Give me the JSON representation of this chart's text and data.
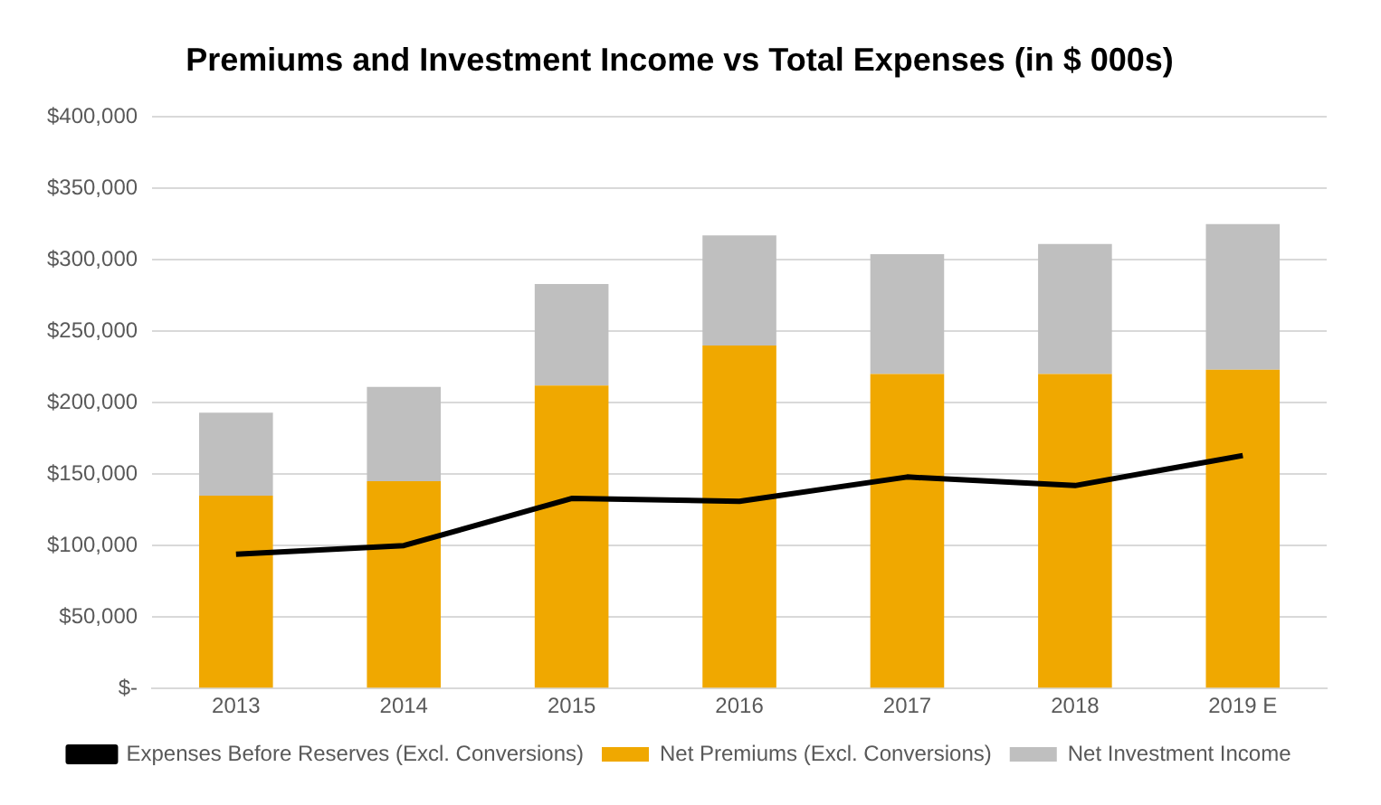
{
  "chart_data": {
    "type": "bar",
    "title": "Premiums and Investment Income vs Total Expenses (in $ 000s)",
    "categories": [
      "2013",
      "2014",
      "2015",
      "2016",
      "2017",
      "2018",
      "2019 E"
    ],
    "stacked": true,
    "series": [
      {
        "name": "Net Premiums (Excl. Conversions)",
        "color": "#f0a800",
        "values": [
          135000,
          145000,
          212000,
          240000,
          220000,
          220000,
          223000
        ]
      },
      {
        "name": "Net Investment Income",
        "color": "#bfbfbf",
        "values": [
          58000,
          66000,
          71000,
          77000,
          84000,
          91000,
          102000
        ]
      },
      {
        "name": "Expenses Before Reserves (Excl. Conversions)",
        "type": "line",
        "color": "#000000",
        "marker": "none",
        "values": [
          94000,
          100000,
          133000,
          131000,
          148000,
          142000,
          163000
        ]
      }
    ],
    "ylim": [
      0,
      400000
    ],
    "yticks": [
      {
        "value": 0,
        "label": "$-"
      },
      {
        "value": 50000,
        "label": "$50,000"
      },
      {
        "value": 100000,
        "label": "$100,000"
      },
      {
        "value": 150000,
        "label": "$150,000"
      },
      {
        "value": 200000,
        "label": "$200,000"
      },
      {
        "value": 250000,
        "label": "$250,000"
      },
      {
        "value": 300000,
        "label": "$300,000"
      },
      {
        "value": 350000,
        "label": "$350,000"
      },
      {
        "value": 400000,
        "label": "$400,000"
      }
    ],
    "grid": "y",
    "legend": "bottom"
  }
}
